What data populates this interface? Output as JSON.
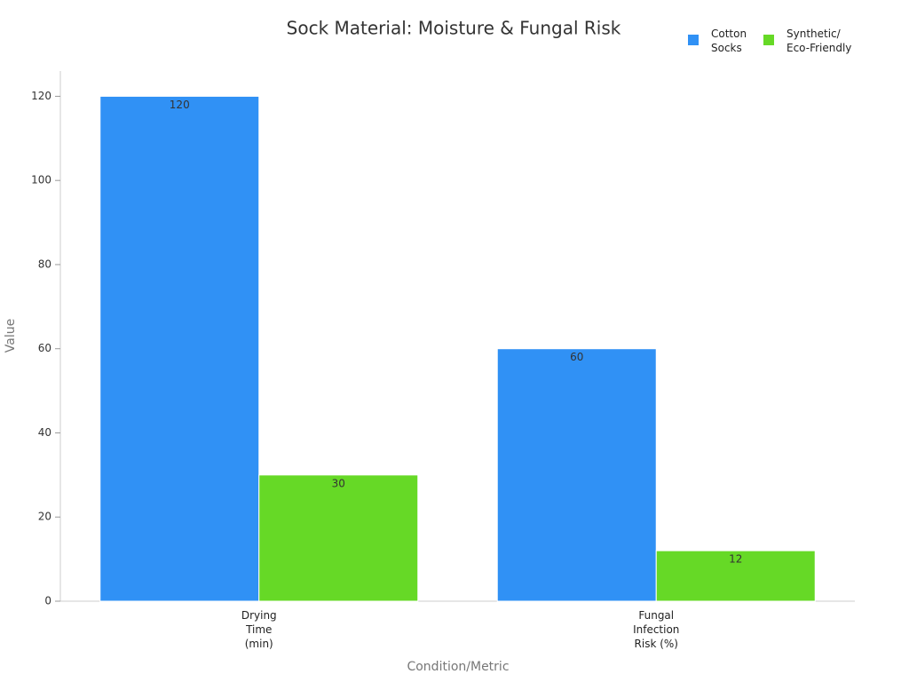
{
  "chart_data": {
    "type": "bar",
    "title": "Sock Material: Moisture & Fungal Risk",
    "x_label": "Condition/Metric",
    "y_label": "Value",
    "categories": [
      "Drying Time (min)",
      "Fungal Infection Risk (%)"
    ],
    "series": [
      {
        "name": "Cotton Socks",
        "color": "#3091f5",
        "values": [
          120,
          60
        ]
      },
      {
        "name": "Synthetic/ Eco-Friendly",
        "color": "#66d926",
        "values": [
          30,
          12
        ]
      }
    ],
    "ylim": [
      0,
      126
    ],
    "yticks": [
      0,
      20,
      40,
      60,
      80,
      100,
      120
    ],
    "grid": false,
    "legend": "top-right"
  }
}
